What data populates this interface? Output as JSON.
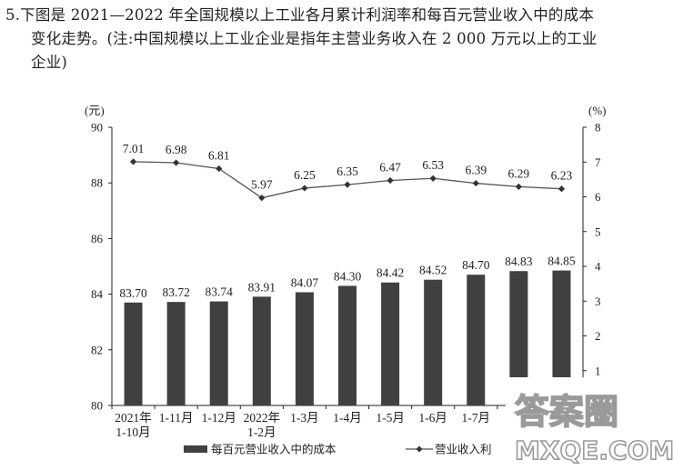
{
  "question": {
    "line1": "5.下图是 2021—2022 年全国规模以上工业各月累计利润率和每百元营业收入中的成本",
    "line2": "变化走势。(注:中国规模以上工业企业是指年主营业务收入在 2 000 万元以上的工业",
    "line3": "企业)"
  },
  "watermark": {
    "line1": "答案圈",
    "line2": "MXQE.COM"
  },
  "chart_data": {
    "type": "bar+line",
    "categories": [
      [
        "2021年",
        "1-10月"
      ],
      [
        "1-11月"
      ],
      [
        "1-12月"
      ],
      [
        "2022年",
        "1-2月"
      ],
      [
        "1-3月"
      ],
      [
        "1-4月"
      ],
      [
        "1-5月"
      ],
      [
        "1-6月"
      ],
      [
        "1-7月"
      ],
      [
        ""
      ],
      [
        ""
      ]
    ],
    "left_axis": {
      "unit": "(元)",
      "min": 80,
      "max": 90,
      "ticks": [
        80,
        82,
        84,
        86,
        88,
        90
      ]
    },
    "right_axis": {
      "unit": "(%)",
      "min": 0,
      "max": 8,
      "ticks": [
        "1",
        "2",
        "3",
        "4",
        "5",
        "6",
        "7",
        "8"
      ]
    },
    "series": [
      {
        "name": "每百元营业收入中的成本",
        "kind": "bar",
        "axis": "left",
        "values": [
          83.7,
          83.72,
          83.74,
          83.91,
          84.07,
          84.3,
          84.42,
          84.52,
          84.7,
          84.83,
          84.85
        ],
        "labels": [
          "83.70",
          "83.72",
          "83.74",
          "83.91",
          "84.07",
          "84.30",
          "84.42",
          "84.52",
          "84.70",
          "84.83",
          "84.85"
        ],
        "color": "#404040"
      },
      {
        "name": "营业收入利",
        "kind": "line",
        "axis": "right",
        "values": [
          7.01,
          6.98,
          6.81,
          5.97,
          6.25,
          6.35,
          6.47,
          6.53,
          6.39,
          6.29,
          6.23
        ],
        "labels": [
          "7.01",
          "6.98",
          "6.81",
          "5.97",
          "6.25",
          "6.35",
          "6.47",
          "6.53",
          "6.39",
          "6.29",
          "6.23"
        ],
        "color": "#555555"
      }
    ],
    "grid": false,
    "legend_position": "bottom"
  }
}
